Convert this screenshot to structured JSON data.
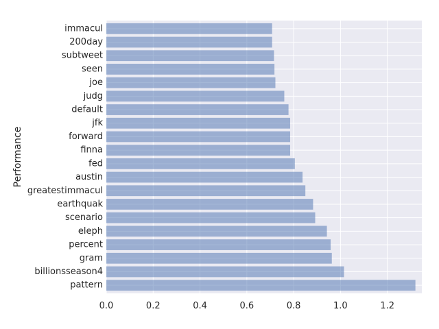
{
  "chart_data": {
    "type": "bar",
    "orientation": "horizontal",
    "title": "",
    "xlabel": "",
    "ylabel": "Performance",
    "categories": [
      "pattern",
      "billionsseason4",
      "gram",
      "percent",
      "eleph",
      "scenario",
      "earthquak",
      "greatestimmacul",
      "austin",
      "fed",
      "finna",
      "forward",
      "jfk",
      "default",
      "judg",
      "joe",
      "seen",
      "subtweet",
      "200day",
      "immacul"
    ],
    "values": [
      1.32,
      1.015,
      0.963,
      0.958,
      0.942,
      0.892,
      0.883,
      0.85,
      0.838,
      0.805,
      0.785,
      0.785,
      0.785,
      0.778,
      0.76,
      0.722,
      0.718,
      0.716,
      0.708,
      0.708
    ],
    "xlim": [
      0,
      1.3475
    ],
    "xticks": [
      "0.0",
      "0.2",
      "0.4",
      "0.6",
      "0.8",
      "1.0",
      "1.2"
    ],
    "xtick_values": [
      0,
      0.2,
      0.4,
      0.6,
      0.8,
      1.0,
      1.2
    ],
    "grid": true,
    "legend": "none",
    "colors": {
      "bar": "#4c72b0",
      "bar_opacity": 0.5,
      "background": "#eaeaf2",
      "grid": "#ffffff",
      "text": "#262626"
    }
  }
}
